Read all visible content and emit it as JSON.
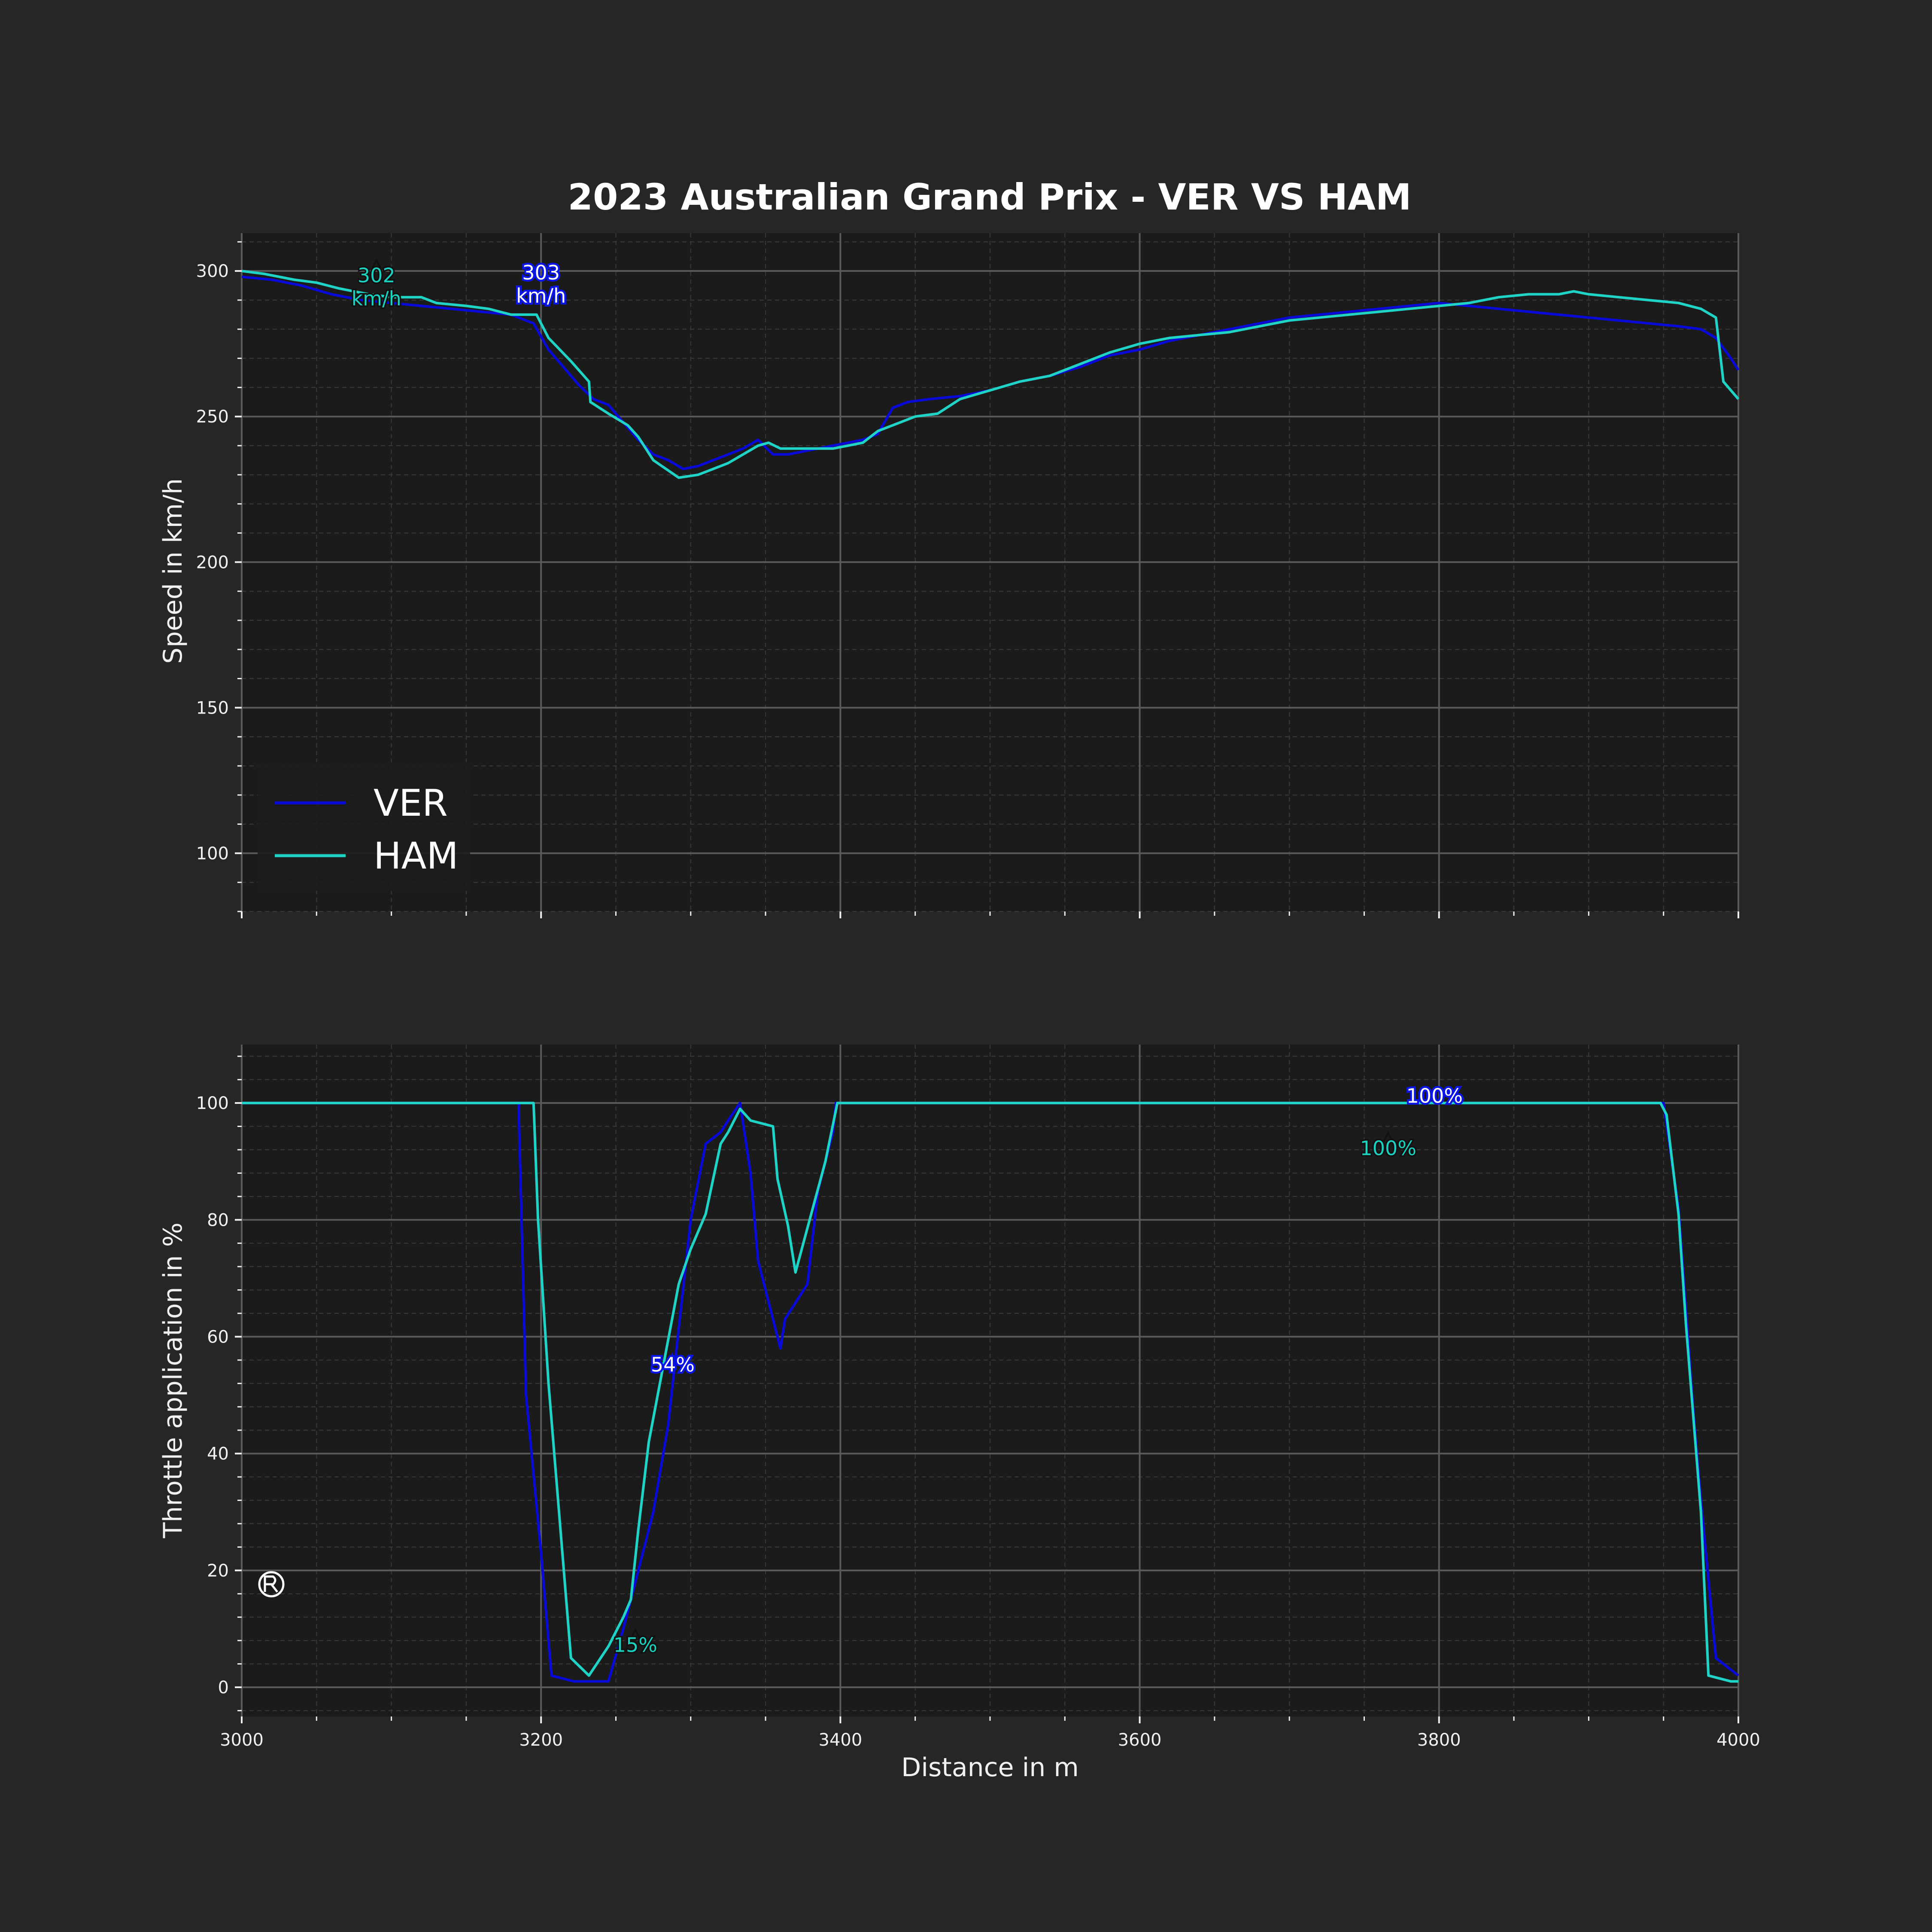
{
  "title": "2023 Australian Grand Prix - VER VS HAM",
  "colors": {
    "page_background": "#282625",
    "plot_background": "#1c1b1b",
    "VER": "#0a0ad8",
    "HAM": "#1fd3c6",
    "major_grid": "#5a5a5a",
    "minor_grid": "#3a3a3a"
  },
  "chart_data": [
    {
      "type": "line",
      "name": "speed",
      "xlabel": "",
      "ylabel": "Speed in km/h",
      "xlim": [
        3000,
        4000
      ],
      "ylim": [
        80,
        313
      ],
      "xticks": [
        3000,
        3200,
        3400,
        3600,
        3800,
        4000
      ],
      "yticks": [
        100,
        150,
        200,
        250,
        300
      ],
      "grid": true,
      "legend": {
        "placement": "lower-left",
        "entries": [
          "VER",
          "HAM"
        ]
      },
      "series": [
        {
          "name": "VER",
          "x": [
            3000,
            3020,
            3040,
            3060,
            3080,
            3100,
            3120,
            3140,
            3160,
            3180,
            3195,
            3205,
            3215,
            3225,
            3235,
            3245,
            3255,
            3265,
            3275,
            3285,
            3295,
            3305,
            3315,
            3325,
            3335,
            3345,
            3355,
            3365,
            3375,
            3385,
            3395,
            3405,
            3415,
            3425,
            3435,
            3445,
            3460,
            3480,
            3500,
            3520,
            3540,
            3560,
            3580,
            3600,
            3620,
            3640,
            3660,
            3680,
            3700,
            3720,
            3740,
            3760,
            3780,
            3800,
            3820,
            3840,
            3860,
            3880,
            3900,
            3920,
            3940,
            3960,
            3975,
            3985,
            3995,
            4000
          ],
          "values": [
            298,
            297,
            295,
            292,
            290,
            289,
            288,
            287,
            286,
            285,
            282,
            273,
            267,
            261,
            256,
            254,
            248,
            242,
            237,
            235,
            232,
            233,
            235,
            237,
            239,
            242,
            237,
            237,
            238,
            239,
            240,
            241,
            242,
            244,
            253,
            255,
            256,
            257,
            259,
            262,
            264,
            267,
            271,
            273,
            276,
            278,
            280,
            282,
            284,
            285,
            286,
            287,
            288,
            289,
            288,
            287,
            286,
            285,
            284,
            283,
            282,
            281,
            280,
            277,
            270,
            266
          ]
        },
        {
          "name": "HAM",
          "x": [
            3000,
            3015,
            3035,
            3050,
            3065,
            3085,
            3100,
            3120,
            3130,
            3150,
            3165,
            3180,
            3197,
            3205,
            3220,
            3232,
            3233,
            3245,
            3258,
            3265,
            3275,
            3292,
            3305,
            3315,
            3325,
            3335,
            3345,
            3352,
            3360,
            3375,
            3395,
            3415,
            3425,
            3440,
            3450,
            3465,
            3480,
            3500,
            3520,
            3540,
            3560,
            3580,
            3600,
            3620,
            3640,
            3660,
            3680,
            3700,
            3720,
            3740,
            3760,
            3780,
            3800,
            3820,
            3840,
            3860,
            3880,
            3890,
            3900,
            3920,
            3940,
            3960,
            3975,
            3985,
            3990,
            4000
          ],
          "values": [
            300,
            299,
            297,
            296,
            294,
            292,
            291,
            291,
            289,
            288,
            287,
            285,
            285,
            277,
            269,
            262,
            255,
            251,
            247,
            243,
            235,
            229,
            230,
            232,
            234,
            237,
            240,
            241,
            239,
            239,
            239,
            241,
            245,
            248,
            250,
            251,
            256,
            259,
            262,
            264,
            268,
            272,
            275,
            277,
            278,
            279,
            281,
            283,
            284,
            285,
            286,
            287,
            288,
            289,
            291,
            292,
            292,
            293,
            292,
            291,
            290,
            289,
            287,
            284,
            262,
            256
          ]
        }
      ],
      "annotations": [
        {
          "driver": "VER",
          "x": 3200,
          "y": 303,
          "label": "303\nkm/h"
        },
        {
          "driver": "HAM",
          "x": 3090,
          "y": 302,
          "label": "302\nkm/h"
        }
      ]
    },
    {
      "type": "line",
      "name": "throttle",
      "xlabel": "Distance in m",
      "ylabel": "Throttle application in %",
      "xlim": [
        3000,
        4000
      ],
      "ylim": [
        -5,
        110
      ],
      "xticks": [
        3000,
        3200,
        3400,
        3600,
        3800,
        4000
      ],
      "yticks": [
        0,
        20,
        40,
        60,
        80,
        100
      ],
      "grid": true,
      "series": [
        {
          "name": "VER",
          "x": [
            3000,
            3185,
            3190,
            3200,
            3207,
            3222,
            3245,
            3255,
            3265,
            3275,
            3285,
            3300,
            3310,
            3320,
            3325,
            3333,
            3340,
            3345,
            3355,
            3360,
            3363,
            3368,
            3378,
            3385,
            3395,
            3397,
            3950,
            3960,
            3970,
            3975,
            3985,
            4000
          ],
          "values": [
            100,
            100,
            50,
            23,
            2,
            1,
            1,
            10,
            20,
            30,
            45,
            80,
            93,
            95,
            97,
            100,
            88,
            73,
            63,
            58,
            63,
            65,
            69,
            85,
            95,
            100,
            100,
            82,
            47,
            32,
            5,
            2
          ]
        },
        {
          "name": "HAM",
          "x": [
            3000,
            3195,
            3198,
            3205,
            3220,
            3232,
            3245,
            3255,
            3260,
            3265,
            3272,
            3292,
            3300,
            3310,
            3320,
            3325,
            3333,
            3340,
            3355,
            3358,
            3365,
            3370,
            3390,
            3398,
            3948,
            3952,
            3960,
            3965,
            3975,
            3980,
            3995,
            4000
          ],
          "values": [
            100,
            100,
            80,
            52,
            5,
            2,
            7,
            12,
            15,
            27,
            42,
            69,
            75,
            81,
            93,
            95,
            99,
            97,
            96,
            87,
            79,
            71,
            90,
            100,
            100,
            98,
            81,
            62,
            30,
            2,
            1,
            1
          ]
        }
      ],
      "annotations": [
        {
          "driver": "VER",
          "x": 3288,
          "y": 57,
          "label": "54%"
        },
        {
          "driver": "HAM",
          "x": 3263,
          "y": 9,
          "label": "15%"
        },
        {
          "driver": "VER",
          "x": 3797,
          "y": 103,
          "label": "100%"
        },
        {
          "driver": "HAM",
          "x": 3766,
          "y": 94,
          "label": "100%"
        }
      ]
    }
  ]
}
